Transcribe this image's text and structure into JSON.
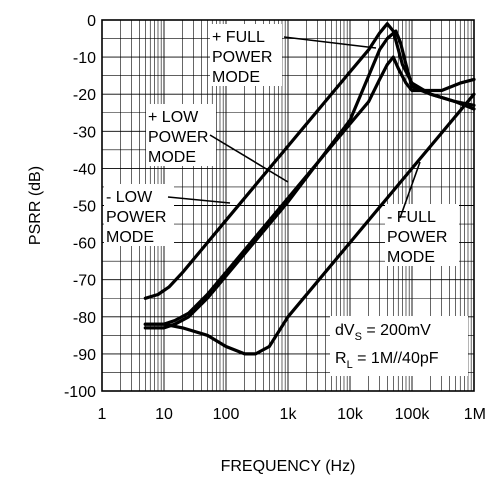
{
  "chart_data": {
    "type": "line",
    "xlabel": "FREQUENCY (Hz)",
    "ylabel": "PSRR (dB)",
    "xscale": "log",
    "xlim": [
      1,
      1000000
    ],
    "ylim": [
      -100,
      0
    ],
    "grid": true,
    "x_ticks": [
      {
        "value": 1,
        "label": "1"
      },
      {
        "value": 10,
        "label": "10"
      },
      {
        "value": 100,
        "label": "100"
      },
      {
        "value": 1000,
        "label": "1k"
      },
      {
        "value": 10000,
        "label": "10k"
      },
      {
        "value": 100000,
        "label": "100k"
      },
      {
        "value": 1000000,
        "label": "1M"
      }
    ],
    "y_ticks": [
      {
        "value": 0,
        "label": "0"
      },
      {
        "value": -10,
        "label": "-10"
      },
      {
        "value": -20,
        "label": "-20"
      },
      {
        "value": -30,
        "label": "-30"
      },
      {
        "value": -40,
        "label": "-40"
      },
      {
        "value": -50,
        "label": "-50"
      },
      {
        "value": -60,
        "label": "-60"
      },
      {
        "value": -70,
        "label": "-70"
      },
      {
        "value": -80,
        "label": "-80"
      },
      {
        "value": -90,
        "label": "-90"
      },
      {
        "value": -100,
        "label": "-100"
      }
    ],
    "series": [
      {
        "name": "- LOW POWER MODE",
        "label_lines": [
          "- LOW",
          "POWER",
          "MODE"
        ],
        "points": [
          [
            5,
            -75
          ],
          [
            8,
            -74
          ],
          [
            12,
            -72
          ],
          [
            20,
            -68
          ],
          [
            40,
            -62
          ],
          [
            100,
            -54
          ],
          [
            1000,
            -34
          ],
          [
            10000,
            -14
          ],
          [
            20000,
            -8
          ],
          [
            30000,
            -3.5
          ],
          [
            40000,
            -1
          ],
          [
            50000,
            -3
          ],
          [
            70000,
            -12
          ],
          [
            100000,
            -17
          ],
          [
            200000,
            -20
          ],
          [
            500000,
            -22
          ],
          [
            1000000,
            -24
          ]
        ]
      },
      {
        "name": "+ LOW POWER MODE",
        "label_lines": [
          "+ LOW",
          "POWER",
          "MODE"
        ],
        "points": [
          [
            5,
            -82
          ],
          [
            10,
            -82
          ],
          [
            15,
            -81
          ],
          [
            25,
            -79
          ],
          [
            50,
            -74
          ],
          [
            100,
            -68
          ],
          [
            1000,
            -48
          ],
          [
            10000,
            -28
          ],
          [
            20000,
            -22
          ],
          [
            30000,
            -16
          ],
          [
            40000,
            -12
          ],
          [
            50000,
            -10
          ],
          [
            60000,
            -13
          ],
          [
            80000,
            -17
          ],
          [
            100000,
            -19
          ],
          [
            300000,
            -19
          ],
          [
            600000,
            -17
          ],
          [
            1000000,
            -16
          ]
        ]
      },
      {
        "name": "+ FULL POWER MODE",
        "label_lines": [
          "+ FULL",
          "POWER",
          "MODE"
        ],
        "points": [
          [
            5,
            -83
          ],
          [
            10,
            -83
          ],
          [
            15,
            -82
          ],
          [
            25,
            -80
          ],
          [
            50,
            -75
          ],
          [
            100,
            -69
          ],
          [
            1000,
            -49
          ],
          [
            10000,
            -27
          ],
          [
            20000,
            -15
          ],
          [
            30000,
            -8
          ],
          [
            40000,
            -5
          ],
          [
            55000,
            -3
          ],
          [
            65000,
            -6
          ],
          [
            80000,
            -12
          ],
          [
            100000,
            -18
          ],
          [
            200000,
            -20
          ],
          [
            500000,
            -22
          ],
          [
            1000000,
            -23
          ]
        ]
      },
      {
        "name": "- FULL POWER MODE",
        "label_lines": [
          "- FULL",
          "POWER",
          "MODE"
        ],
        "points": [
          [
            5,
            -82
          ],
          [
            10,
            -82
          ],
          [
            20,
            -83
          ],
          [
            50,
            -85
          ],
          [
            100,
            -88
          ],
          [
            200,
            -90
          ],
          [
            300,
            -90
          ],
          [
            500,
            -88
          ],
          [
            1000,
            -80
          ],
          [
            10000,
            -60
          ],
          [
            100000,
            -40
          ],
          [
            1000000,
            -20
          ]
        ]
      }
    ],
    "annotations": {
      "conditions": [
        {
          "main": "dV",
          "sub": "S",
          "rest": " = 200mV"
        },
        {
          "main": "R",
          "sub": "L",
          "rest": " = 1M//40pF"
        }
      ]
    }
  }
}
